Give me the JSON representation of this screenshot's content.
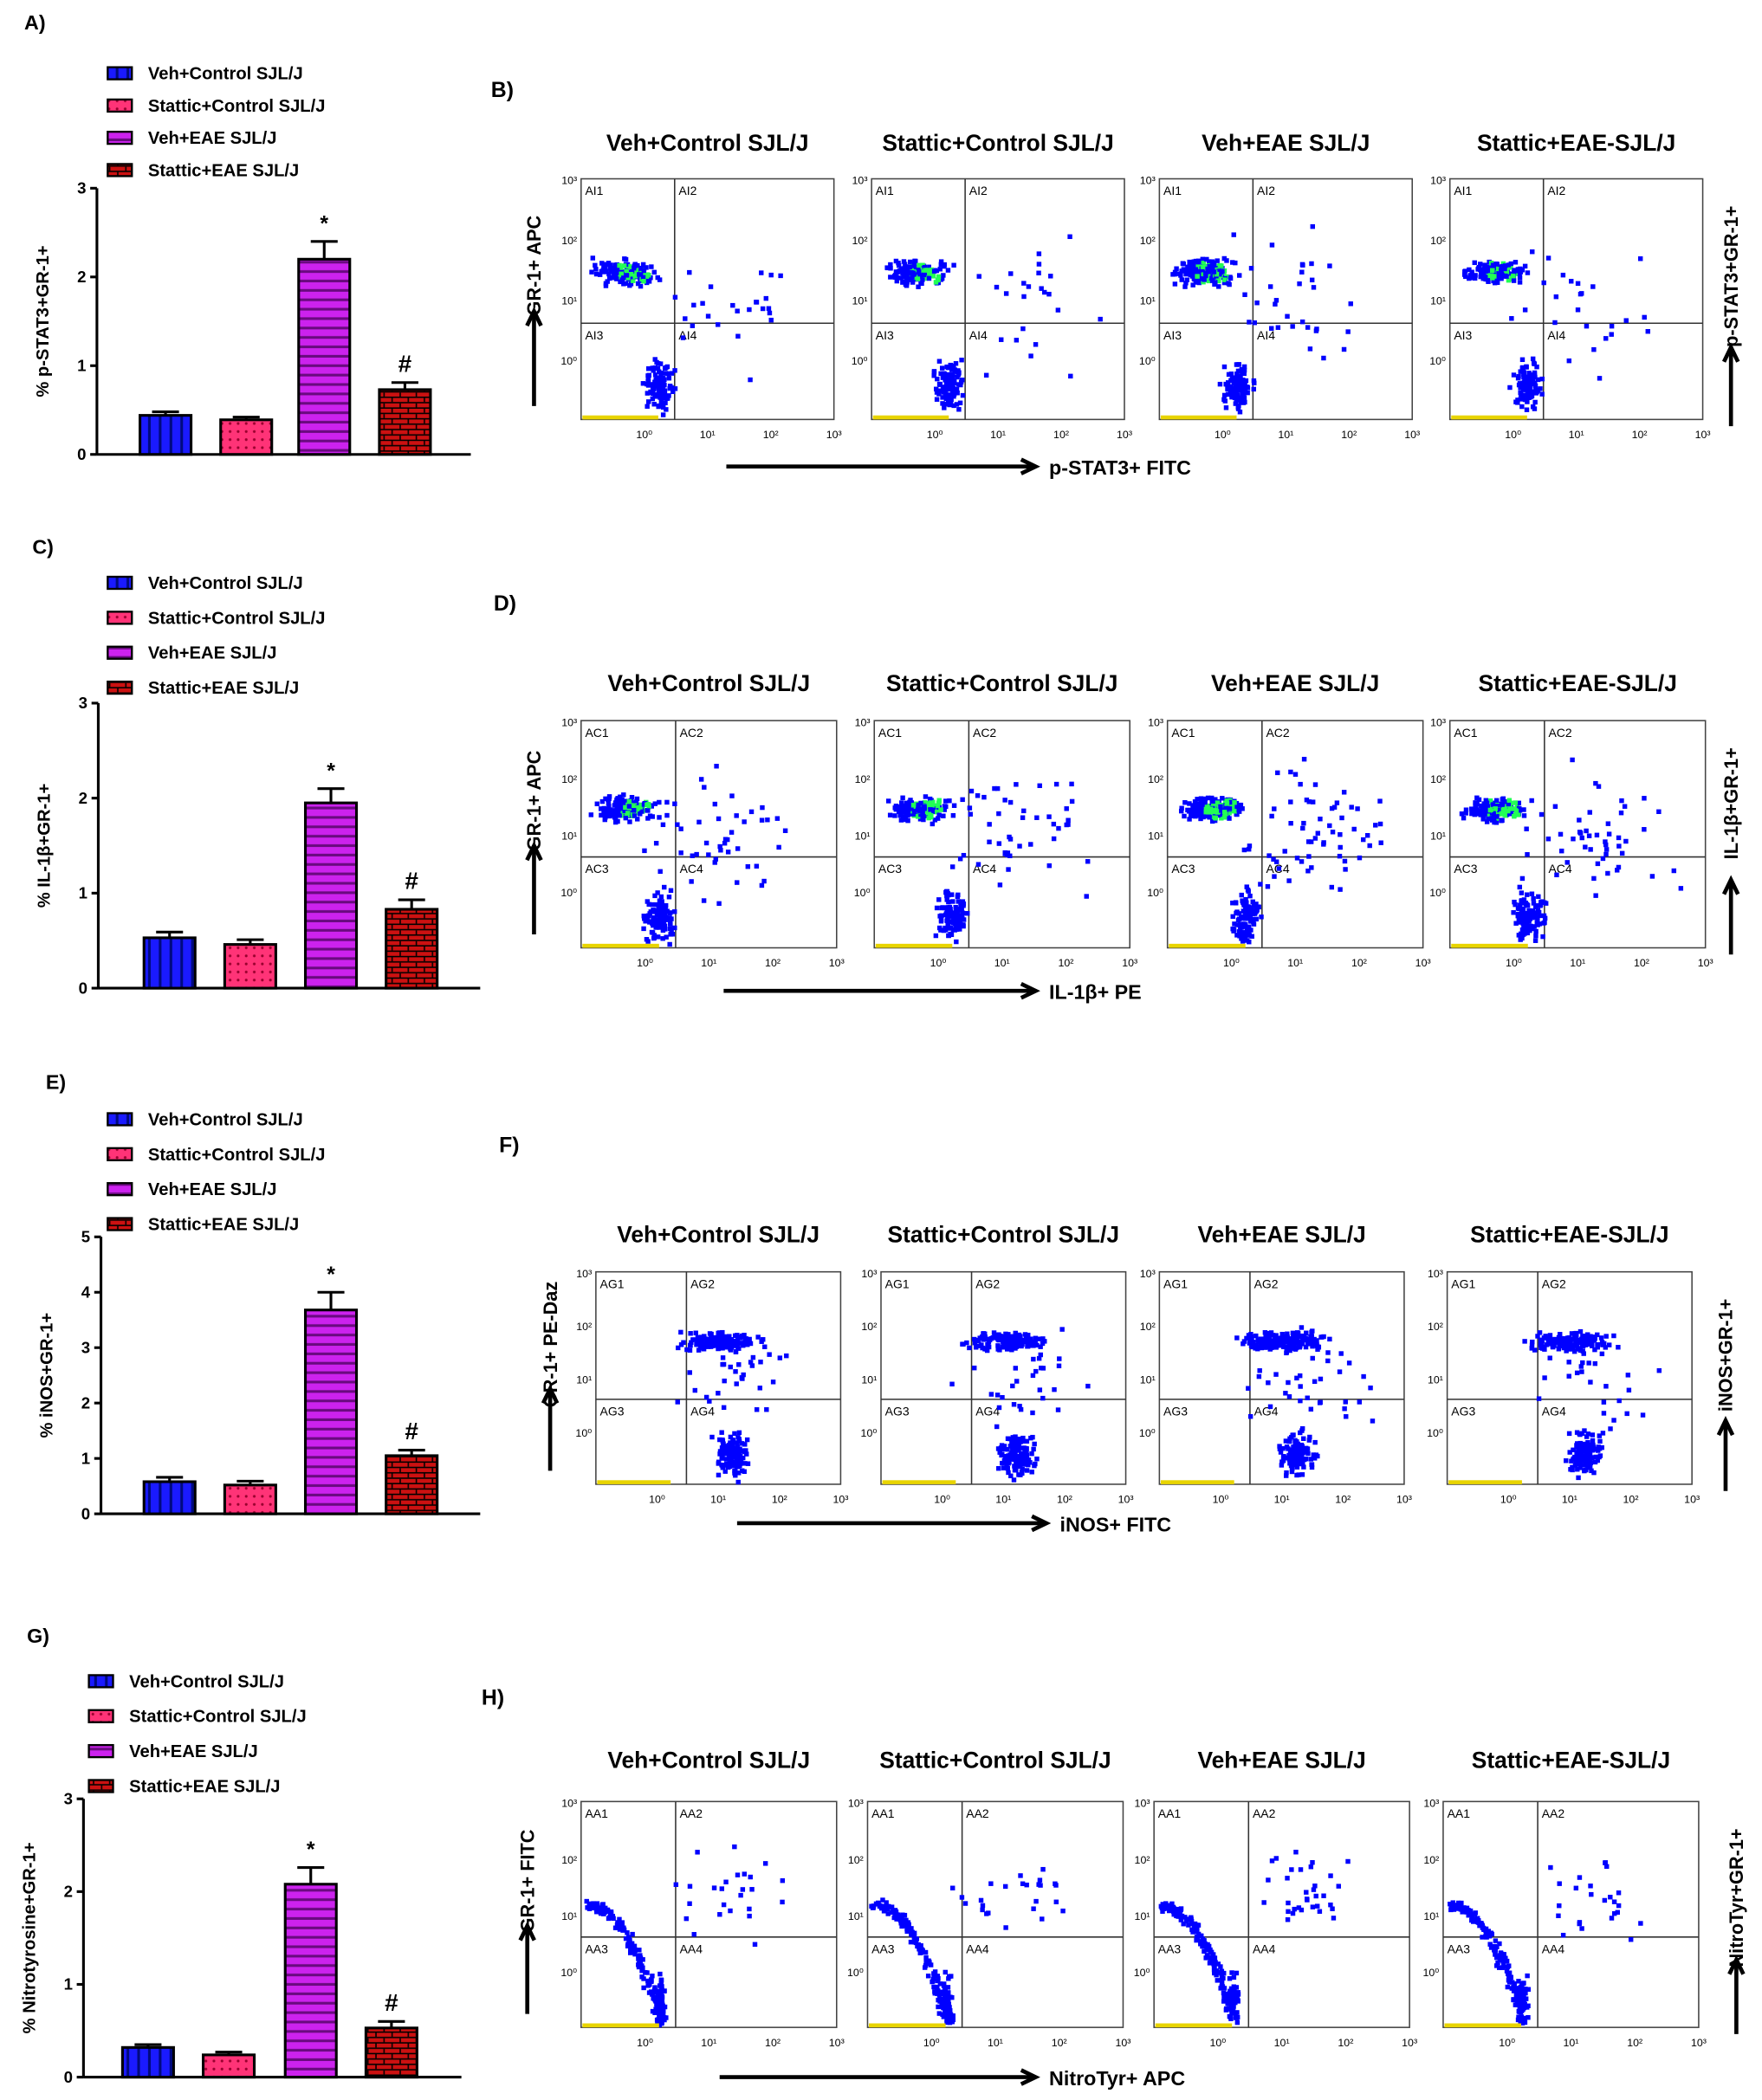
{
  "colors": {
    "veh_control": "#1a1aff",
    "stattic_control": "#ff3377",
    "veh_eae": "#cc22ee",
    "stattic_eae": "#cc1111",
    "flow_dot": "#0000ff",
    "flow_dense": "#22ff55"
  },
  "legend": [
    "Veh+Control SJL/J",
    "Stattic+Control SJL/J",
    "Veh+EAE SJL/J",
    "Stattic+EAE SJL/J"
  ],
  "chart_data": [
    {
      "type": "bar",
      "panel": "A)",
      "categories": [
        "Veh+Control SJL/J",
        "Stattic+Control SJL/J",
        "Veh+EAE SJL/J",
        "Stattic+EAE SJL/J"
      ],
      "values": [
        0.44,
        0.39,
        2.2,
        0.73
      ],
      "errors": [
        0.04,
        0.03,
        0.2,
        0.08
      ],
      "annotations": [
        "",
        "",
        "*",
        "#"
      ],
      "ylabel": "% p-STAT3+GR-1+",
      "xlabel": "",
      "ylim": [
        0,
        3
      ],
      "yticks": [
        "0",
        "1",
        "2",
        "3"
      ],
      "legend_position": "top-left",
      "grid": false
    },
    {
      "type": "bar",
      "panel": "C)",
      "categories": [
        "Veh+Control SJL/J",
        "Stattic+Control SJL/J",
        "Veh+EAE SJL/J",
        "Stattic+EAE SJL/J"
      ],
      "values": [
        0.53,
        0.46,
        1.95,
        0.83
      ],
      "errors": [
        0.06,
        0.05,
        0.15,
        0.1
      ],
      "annotations": [
        "",
        "",
        "*",
        "#"
      ],
      "ylabel": "% IL-1β+GR-1+",
      "xlabel": "",
      "ylim": [
        0,
        3
      ],
      "yticks": [
        "0",
        "1",
        "2",
        "3"
      ],
      "legend_position": "top-left",
      "grid": false
    },
    {
      "type": "bar",
      "panel": "E)",
      "categories": [
        "Veh+Control SJL/J",
        "Stattic+Control SJL/J",
        "Veh+EAE SJL/J",
        "Stattic+EAE SJL/J"
      ],
      "values": [
        0.58,
        0.52,
        3.68,
        1.05
      ],
      "errors": [
        0.08,
        0.07,
        0.32,
        0.1
      ],
      "annotations": [
        "",
        "",
        "*",
        "#"
      ],
      "ylabel": "% iNOS+GR-1+",
      "xlabel": "",
      "ylim": [
        0,
        5
      ],
      "yticks": [
        "0",
        "1",
        "2",
        "3",
        "4",
        "5"
      ],
      "legend_position": "top-left",
      "grid": false
    },
    {
      "type": "bar",
      "panel": "G)",
      "categories": [
        "Veh+Control SJL/J",
        "Stattic+Control SJL/J",
        "Veh+EAE SJL/J",
        "Stattic+EAE SJL/J"
      ],
      "values": [
        0.32,
        0.24,
        2.08,
        0.53
      ],
      "errors": [
        0.03,
        0.03,
        0.18,
        0.07
      ],
      "annotations": [
        "",
        "",
        "*",
        "#"
      ],
      "ylabel": "% Nitrotyrosine+GR-1+",
      "xlabel": "",
      "ylim": [
        0,
        3
      ],
      "yticks": [
        "0",
        "1",
        "2",
        "3"
      ],
      "legend_position": "top-left",
      "grid": false
    }
  ],
  "flow_panels": [
    {
      "panel": "B)",
      "titles": [
        "Veh+Control SJL/J",
        "Stattic+Control SJL/J",
        "Veh+EAE SJL/J",
        "Stattic+EAE-SJL/J"
      ],
      "gates": [
        "AI1",
        "AI2",
        "AI3",
        "AI4"
      ],
      "ylabel": "GR-1+ APC",
      "xlabel": "p-STAT3+ FITC",
      "right_label": "p-STAT3+GR-1+",
      "xticks": [
        "10⁰",
        "10¹",
        "10²",
        "10³"
      ],
      "yticks": [
        "10³",
        "10²",
        "10¹",
        "10⁰"
      ]
    },
    {
      "panel": "D)",
      "titles": [
        "Veh+Control SJL/J",
        "Stattic+Control SJL/J",
        "Veh+EAE SJL/J",
        "Stattic+EAE-SJL/J"
      ],
      "gates": [
        "AC1",
        "AC2",
        "AC3",
        "AC4"
      ],
      "ylabel": "GR-1+ APC",
      "xlabel": "IL-1β+ PE",
      "right_label": "IL-1β+GR-1+",
      "xticks": [
        "10⁰",
        "10¹",
        "10²",
        "10³"
      ],
      "yticks": [
        "10³",
        "10²",
        "10¹",
        "10⁰"
      ]
    },
    {
      "panel": "F)",
      "titles": [
        "Veh+Control SJL/J",
        "Stattic+Control SJL/J",
        "Veh+EAE SJL/J",
        "Stattic+EAE-SJL/J"
      ],
      "gates": [
        "AG1",
        "AG2",
        "AG3",
        "AG4"
      ],
      "ylabel": "GR-1+ PE-Daz",
      "xlabel": "iNOS+ FITC",
      "right_label": "iNOS+GR-1+",
      "xticks": [
        "10⁰",
        "10¹",
        "10²",
        "10³"
      ],
      "yticks": [
        "10³",
        "10²",
        "10¹",
        "10⁰"
      ]
    },
    {
      "panel": "H)",
      "titles": [
        "Veh+Control SJL/J",
        "Stattic+Control SJL/J",
        "Veh+EAE SJL/J",
        "Stattic+EAE-SJL/J"
      ],
      "gates": [
        "AA1",
        "AA2",
        "AA3",
        "AA4"
      ],
      "ylabel": "GR-1+ FITC",
      "xlabel": "NitroTyr+ APC",
      "right_label": "NitroTyr+GR-1+",
      "xticks": [
        "10⁰",
        "10¹",
        "10²",
        "10³"
      ],
      "yticks": [
        "10³",
        "10²",
        "10¹",
        "10⁰"
      ]
    }
  ]
}
